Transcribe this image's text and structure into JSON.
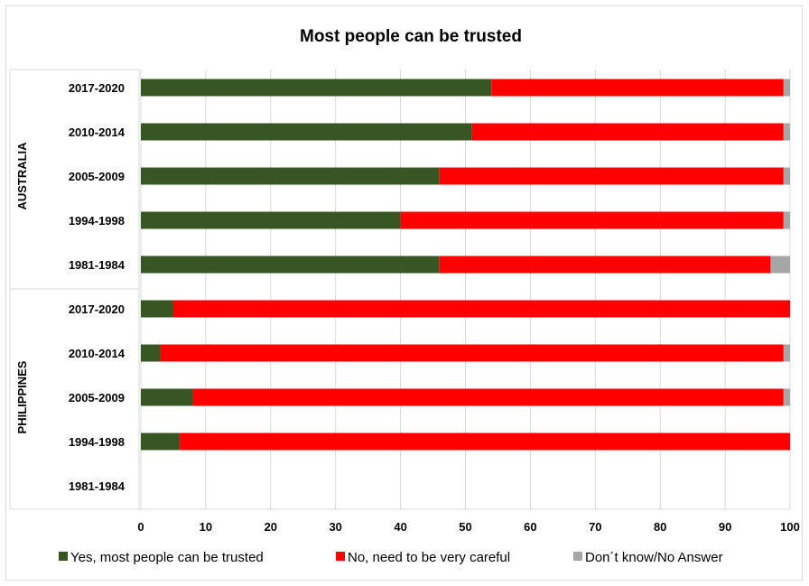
{
  "chart_data": {
    "type": "bar",
    "orientation": "horizontal",
    "stacked": true,
    "title": "Most people can be trusted",
    "xlim": [
      0,
      100
    ],
    "x_ticks": [
      "0",
      "10",
      "20",
      "30",
      "40",
      "50",
      "60",
      "70",
      "80",
      "90",
      "100"
    ],
    "grid": true,
    "legend_position": "bottom",
    "groups": [
      {
        "name": "AUSTRALIA",
        "categories": [
          "2017-2020",
          "2010-2014",
          "2005-2009",
          "1994-1998",
          "1981-1984"
        ],
        "values": [
          [
            54,
            45,
            1
          ],
          [
            51,
            48,
            1
          ],
          [
            46,
            53,
            1
          ],
          [
            40,
            59,
            1
          ],
          [
            46,
            51,
            3
          ]
        ]
      },
      {
        "name": "PHILIPPINES",
        "categories": [
          "2017-2020",
          "2010-2014",
          "2005-2009",
          "1994-1998",
          "1981-1984"
        ],
        "values": [
          [
            5,
            95,
            0
          ],
          [
            3,
            96,
            1
          ],
          [
            8,
            91,
            1
          ],
          [
            6,
            94,
            0
          ],
          null
        ]
      }
    ],
    "series": [
      {
        "name": "Yes, most people can be trusted",
        "color": "#375623"
      },
      {
        "name": "No,  need to be  very careful",
        "color": "#ff0000"
      },
      {
        "name": "Don´t know/No Answer",
        "color": "#a6a6a6"
      }
    ]
  }
}
